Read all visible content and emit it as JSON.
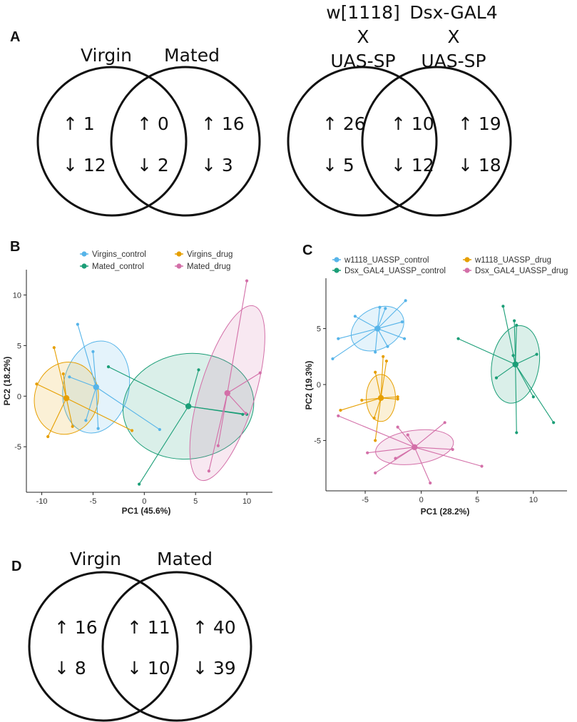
{
  "panel_labels": {
    "A": "A",
    "B": "B",
    "C": "C",
    "D": "D"
  },
  "venn_A1": {
    "left_label": "Virgin",
    "right_label": "Mated",
    "left_up": "↑ 1",
    "left_down": "↓ 12",
    "mid_up": "↑ 0",
    "mid_down": "↓ 2",
    "right_up": "↑ 16",
    "right_down": "↓ 3"
  },
  "venn_A2": {
    "left_label_lines": [
      "w[1118]",
      "X",
      "UAS-SP"
    ],
    "right_label_lines": [
      "Dsx-GAL4",
      "X",
      "UAS-SP"
    ],
    "left_up": "↑ 26",
    "left_down": "↓ 5",
    "mid_up": "↑ 10",
    "mid_down": "↓ 12",
    "right_up": "↑ 19",
    "right_down": "↓ 18"
  },
  "venn_D": {
    "left_label": "Virgin",
    "right_label": "Mated",
    "left_up": "↑ 16",
    "left_down": "↓ 8",
    "mid_up": "↑ 11",
    "mid_down": "↓ 10",
    "right_up": "↑ 40",
    "right_down": "↓ 39"
  },
  "colors": {
    "blue": "#56b4e9",
    "orange": "#e69f00",
    "green": "#1b9e77",
    "pink": "#d36fa8"
  },
  "chart_data": [
    {
      "type": "scatter",
      "panel": "B",
      "xlabel": "PC1 (45.6%)",
      "ylabel": "PC2 (18.2%)",
      "xlim": [
        -11.5,
        12.5
      ],
      "ylim": [
        -9.5,
        12.5
      ],
      "xticks": [
        -10,
        -5,
        0,
        5,
        10
      ],
      "yticks": [
        -5,
        0,
        5,
        10
      ],
      "legend": [
        "Virgins_control",
        "Virgins_drug",
        "Mated_control",
        "Mated_drug"
      ],
      "series": [
        {
          "name": "Virgins_control",
          "color": "#56b4e9",
          "centroid": [
            -4.7,
            0.9
          ],
          "ellipse": {
            "rx": 3.2,
            "ry": 4.6,
            "angle": 12
          },
          "points": [
            [
              -6.5,
              7.1
            ],
            [
              -5.0,
              4.4
            ],
            [
              -7.3,
              1.9
            ],
            [
              -5.7,
              -2.4
            ],
            [
              -4.5,
              -3.2
            ],
            [
              1.5,
              -3.3
            ]
          ]
        },
        {
          "name": "Virgins_drug",
          "color": "#e69f00",
          "centroid": [
            -7.6,
            -0.2
          ],
          "ellipse": {
            "rx": 3.1,
            "ry": 3.6,
            "angle": 15
          },
          "points": [
            [
              -8.8,
              4.8
            ],
            [
              -7.9,
              2.2
            ],
            [
              -10.5,
              1.2
            ],
            [
              -9.4,
              -4.0
            ],
            [
              -7.0,
              -3.0
            ],
            [
              -1.2,
              -3.4
            ]
          ]
        },
        {
          "name": "Mated_control",
          "color": "#1b9e77",
          "centroid": [
            4.3,
            -1.0
          ],
          "ellipse": {
            "rx": 6.4,
            "ry": 5.2,
            "angle": -8
          },
          "points": [
            [
              -3.5,
              2.9
            ],
            [
              5.3,
              2.6
            ],
            [
              10.0,
              -1.8
            ],
            [
              9.6,
              -1.8
            ],
            [
              -0.5,
              -8.7
            ],
            [
              4.3,
              -1.0
            ]
          ]
        },
        {
          "name": "Mated_drug",
          "color": "#d36fa8",
          "centroid": [
            8.1,
            0.3
          ],
          "ellipse": {
            "rx": 2.7,
            "ry": 9.0,
            "angle": 17
          },
          "points": [
            [
              10.0,
              11.4
            ],
            [
              11.3,
              2.3
            ],
            [
              9.9,
              -1.7
            ],
            [
              6.3,
              -7.4
            ],
            [
              7.2,
              -4.9
            ],
            [
              8.1,
              0.3
            ]
          ]
        }
      ]
    },
    {
      "type": "scatter",
      "panel": "C",
      "xlabel": "PC1 (28.2%)",
      "ylabel": "PC2 (19.3%)",
      "xlim": [
        -8.5,
        13.0
      ],
      "ylim": [
        -9.5,
        9.5
      ],
      "xticks": [
        -5,
        0,
        5,
        10
      ],
      "yticks": [
        -5,
        0,
        5
      ],
      "legend": [
        "w1118_UASSP_control",
        "w1118_UASSP_drug",
        "Dsx_GAL4_UASSP_control",
        "Dsx_GAL4_UASSP_drug"
      ],
      "series": [
        {
          "name": "w1118_UASSP_control",
          "color": "#56b4e9",
          "centroid": [
            -3.9,
            5.0
          ],
          "ellipse": {
            "rx": 2.5,
            "ry": 1.8,
            "angle": -30
          },
          "points": [
            [
              -7.4,
              4.1
            ],
            [
              -5.9,
              6.1
            ],
            [
              -3.7,
              6.9
            ],
            [
              -3.2,
              6.8
            ],
            [
              -1.4,
              7.5
            ],
            [
              -1.7,
              5.6
            ],
            [
              -1.5,
              4.1
            ],
            [
              -3.0,
              3.4
            ],
            [
              -4.1,
              2.9
            ],
            [
              -7.9,
              2.3
            ]
          ]
        },
        {
          "name": "w1118_UASSP_drug",
          "color": "#e69f00",
          "centroid": [
            -3.6,
            -1.2
          ],
          "ellipse": {
            "rx": 1.3,
            "ry": 2.1,
            "angle": 0
          },
          "points": [
            [
              -3.1,
              2.1
            ],
            [
              -3.4,
              2.5
            ],
            [
              -4.1,
              1.1
            ],
            [
              -5.3,
              -1.4
            ],
            [
              -2.1,
              -1.1
            ],
            [
              -2.1,
              -1.3
            ],
            [
              -4.2,
              -3.0
            ],
            [
              -7.2,
              -2.3
            ],
            [
              -4.1,
              -5.0
            ]
          ]
        },
        {
          "name": "Dsx_GAL4_UASSP_control",
          "color": "#1b9e77",
          "centroid": [
            8.4,
            1.8
          ],
          "ellipse": {
            "rx": 2.1,
            "ry": 3.5,
            "angle": 10
          },
          "points": [
            [
              7.3,
              7.0
            ],
            [
              8.3,
              5.7
            ],
            [
              8.5,
              5.3
            ],
            [
              3.3,
              4.1
            ],
            [
              10.3,
              2.7
            ],
            [
              8.2,
              2.6
            ],
            [
              6.7,
              0.6
            ],
            [
              10.0,
              -1.1
            ],
            [
              11.8,
              -3.4
            ],
            [
              8.5,
              -4.3
            ]
          ]
        },
        {
          "name": "Dsx_GAL4_UASSP_drug",
          "color": "#d36fa8",
          "centroid": [
            -0.6,
            -5.6
          ],
          "ellipse": {
            "rx": 3.5,
            "ry": 1.5,
            "angle": -8
          },
          "points": [
            [
              2.1,
              -3.4
            ],
            [
              -2.1,
              -3.8
            ],
            [
              -1.2,
              -4.5
            ],
            [
              -7.4,
              -2.8
            ],
            [
              -4.8,
              -6.1
            ],
            [
              -2.3,
              -6.6
            ],
            [
              -4.1,
              -7.9
            ],
            [
              0.8,
              -8.8
            ],
            [
              5.4,
              -7.3
            ],
            [
              2.8,
              -5.8
            ]
          ]
        }
      ]
    }
  ]
}
